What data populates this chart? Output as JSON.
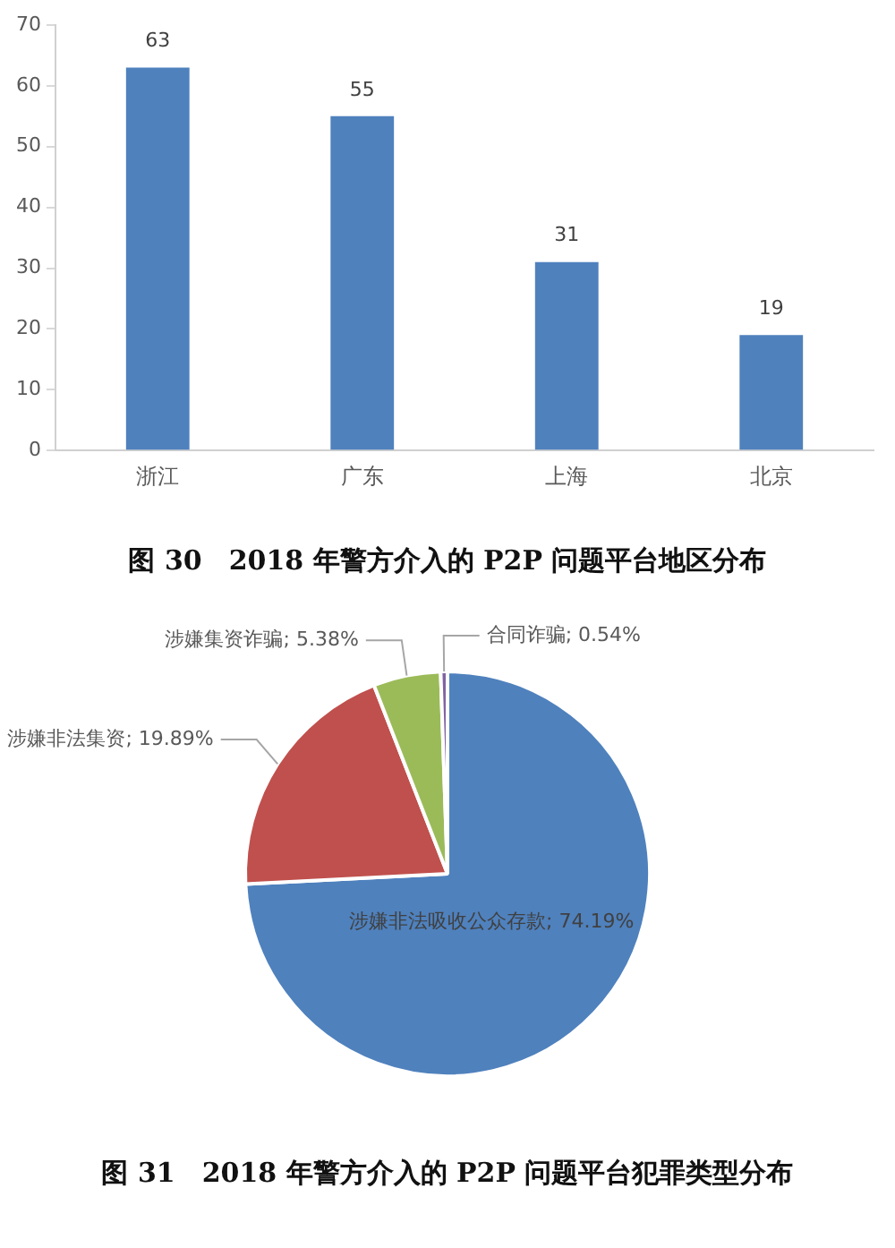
{
  "chart_data": [
    {
      "type": "bar",
      "title": "图 30　2018 年警方介入的 P2P 问题平台地区分布",
      "categories": [
        "浙江",
        "广东",
        "上海",
        "北京"
      ],
      "values": [
        63,
        55,
        31,
        19
      ],
      "color": "#4f81bd",
      "ylim": [
        0,
        70
      ],
      "yticks": [
        0,
        10,
        20,
        30,
        40,
        50,
        60,
        70
      ],
      "grid": false,
      "legend": false,
      "data_labels": true
    },
    {
      "type": "pie",
      "title": "图 31　2018 年警方介入的 P2P 问题平台犯罪类型分布",
      "categories": [
        "涉嫌非法吸收公众存款",
        "涉嫌非法集资",
        "涉嫌集资诈骗",
        "合同诈骗"
      ],
      "values": [
        74.19,
        19.89,
        5.38,
        0.54
      ],
      "colors": [
        "#4f81bd",
        "#c0504d",
        "#9bbb59",
        "#8064a2"
      ],
      "value_labels": [
        "74.19%",
        "19.89%",
        "5.38%",
        "0.54%"
      ],
      "legend": false
    }
  ]
}
